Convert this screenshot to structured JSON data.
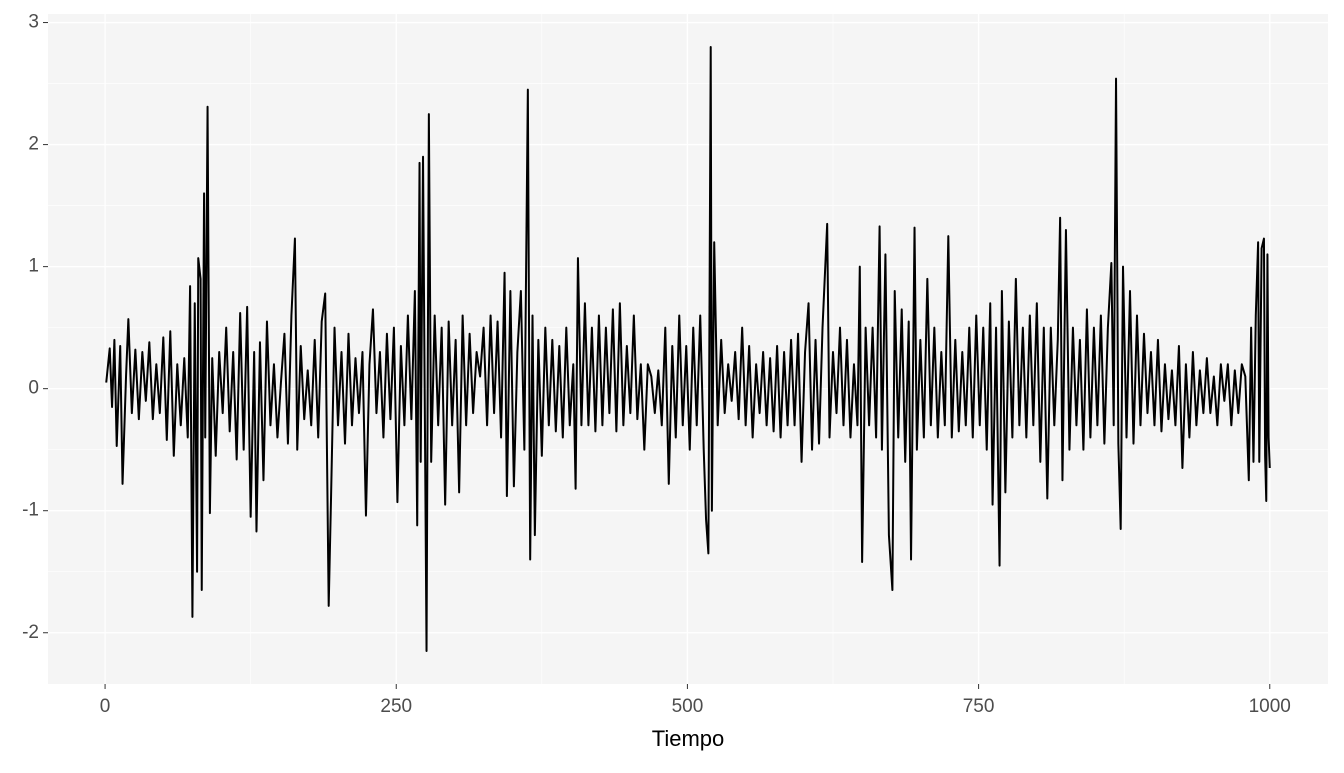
{
  "chart_data": {
    "type": "line",
    "x_label": "Tiempo",
    "color": "#000000",
    "xlim": [
      -49,
      1050
    ],
    "ylim": [
      -2.42,
      3.07
    ],
    "xticks": [
      0,
      250,
      500,
      750,
      1000
    ],
    "yticks": [
      -2,
      -1,
      0,
      1,
      2,
      3
    ],
    "grid": true,
    "minor_grid": true,
    "x": [
      1,
      4,
      6,
      8,
      10,
      13,
      15,
      18,
      20,
      23,
      26,
      29,
      32,
      35,
      38,
      41,
      44,
      47,
      50,
      53,
      56,
      59,
      62,
      65,
      68,
      71,
      73,
      75,
      77,
      79,
      80,
      82,
      83,
      85,
      86,
      88,
      90,
      92,
      95,
      98,
      101,
      104,
      107,
      110,
      113,
      116,
      119,
      122,
      125,
      128,
      130,
      133,
      136,
      139,
      142,
      145,
      148,
      151,
      154,
      157,
      160,
      163,
      165,
      168,
      171,
      174,
      177,
      180,
      183,
      186,
      189,
      192,
      194,
      197,
      200,
      203,
      206,
      209,
      212,
      215,
      218,
      221,
      224,
      227,
      230,
      233,
      236,
      239,
      242,
      245,
      248,
      251,
      254,
      257,
      260,
      263,
      266,
      268,
      270,
      271,
      273,
      275,
      276,
      278,
      280,
      283,
      286,
      289,
      292,
      295,
      298,
      301,
      304,
      307,
      310,
      313,
      316,
      319,
      322,
      325,
      328,
      331,
      334,
      337,
      340,
      343,
      345,
      348,
      351,
      354,
      357,
      360,
      363,
      365,
      367,
      369,
      372,
      375,
      378,
      381,
      384,
      387,
      390,
      393,
      396,
      399,
      402,
      404,
      406,
      409,
      412,
      415,
      418,
      421,
      424,
      427,
      430,
      433,
      436,
      439,
      442,
      445,
      448,
      451,
      454,
      457,
      460,
      463,
      466,
      469,
      472,
      475,
      478,
      481,
      484,
      487,
      490,
      493,
      496,
      499,
      502,
      505,
      508,
      511,
      514,
      516,
      518,
      520,
      521,
      523,
      526,
      529,
      532,
      535,
      538,
      541,
      544,
      547,
      550,
      553,
      556,
      559,
      562,
      565,
      568,
      571,
      574,
      577,
      580,
      583,
      586,
      589,
      592,
      595,
      598,
      601,
      604,
      607,
      610,
      613,
      616,
      620,
      622,
      625,
      628,
      631,
      634,
      637,
      640,
      643,
      646,
      648,
      650,
      653,
      656,
      659,
      662,
      665,
      667,
      670,
      673,
      676,
      678,
      681,
      684,
      687,
      690,
      692,
      695,
      697,
      700,
      703,
      706,
      709,
      712,
      715,
      718,
      721,
      724,
      727,
      730,
      733,
      736,
      739,
      742,
      745,
      748,
      751,
      754,
      757,
      760,
      762,
      765,
      768,
      770,
      773,
      776,
      779,
      782,
      785,
      788,
      791,
      794,
      797,
      800,
      803,
      806,
      809,
      812,
      815,
      818,
      820,
      822,
      825,
      828,
      831,
      834,
      837,
      840,
      843,
      846,
      849,
      852,
      855,
      858,
      861,
      864,
      866,
      868,
      870,
      872,
      874,
      877,
      880,
      883,
      886,
      889,
      892,
      895,
      898,
      901,
      904,
      907,
      910,
      913,
      916,
      919,
      922,
      925,
      928,
      931,
      934,
      937,
      940,
      943,
      946,
      949,
      952,
      955,
      958,
      961,
      964,
      967,
      970,
      973,
      976,
      979,
      982,
      984,
      986,
      988,
      990,
      991,
      993,
      995,
      996,
      997,
      998,
      999,
      1000
    ],
    "values": [
      0.05,
      0.33,
      -0.15,
      0.4,
      -0.47,
      0.35,
      -0.78,
      0.1,
      0.57,
      -0.2,
      0.32,
      -0.25,
      0.3,
      -0.1,
      0.38,
      -0.25,
      0.2,
      -0.2,
      0.42,
      -0.42,
      0.47,
      -0.55,
      0.2,
      -0.3,
      0.25,
      -0.4,
      0.84,
      -1.87,
      0.7,
      -1.5,
      1.07,
      0.9,
      -1.65,
      1.6,
      -0.4,
      2.31,
      -1.02,
      0.25,
      -0.55,
      0.3,
      -0.2,
      0.5,
      -0.35,
      0.3,
      -0.58,
      0.62,
      -0.5,
      0.67,
      -1.05,
      0.3,
      -1.17,
      0.38,
      -0.75,
      0.55,
      -0.3,
      0.2,
      -0.4,
      0.05,
      0.45,
      -0.45,
      0.6,
      1.23,
      -0.5,
      0.35,
      -0.25,
      0.15,
      -0.3,
      0.4,
      -0.4,
      0.55,
      0.78,
      -1.78,
      -0.9,
      0.5,
      -0.3,
      0.3,
      -0.45,
      0.45,
      -0.3,
      0.25,
      -0.2,
      0.3,
      -1.04,
      0.2,
      0.65,
      -0.2,
      0.3,
      -0.4,
      0.45,
      -0.25,
      0.5,
      -0.93,
      0.35,
      -0.3,
      0.6,
      -0.25,
      0.8,
      -1.12,
      1.85,
      -0.6,
      1.9,
      -0.8,
      -2.15,
      2.25,
      -0.6,
      0.6,
      -0.3,
      0.5,
      -0.95,
      0.55,
      -0.3,
      0.4,
      -0.85,
      0.6,
      -0.3,
      0.45,
      -0.2,
      0.3,
      0.1,
      0.5,
      -0.3,
      0.6,
      -0.2,
      0.55,
      -0.4,
      0.95,
      -0.88,
      0.8,
      -0.8,
      0.3,
      0.8,
      -0.5,
      2.45,
      -1.4,
      0.6,
      -1.2,
      0.4,
      -0.55,
      0.5,
      -0.3,
      0.4,
      -0.35,
      0.35,
      -0.4,
      0.5,
      -0.3,
      0.2,
      -0.82,
      1.07,
      -0.3,
      0.7,
      -0.3,
      0.5,
      -0.35,
      0.6,
      -0.3,
      0.5,
      -0.2,
      0.65,
      -0.35,
      0.7,
      -0.3,
      0.35,
      -0.2,
      0.6,
      -0.25,
      0.2,
      -0.5,
      0.2,
      0.1,
      -0.2,
      0.15,
      -0.3,
      0.5,
      -0.78,
      0.35,
      -0.4,
      0.6,
      -0.3,
      0.35,
      -0.5,
      0.5,
      -0.3,
      0.6,
      -0.5,
      -1.07,
      -1.35,
      2.8,
      -1.0,
      1.2,
      -0.3,
      0.4,
      -0.2,
      0.2,
      -0.1,
      0.3,
      -0.25,
      0.5,
      -0.3,
      0.35,
      -0.4,
      0.2,
      -0.2,
      0.3,
      -0.3,
      0.25,
      -0.35,
      0.35,
      -0.4,
      0.3,
      -0.3,
      0.4,
      -0.3,
      0.45,
      -0.6,
      0.3,
      0.7,
      -0.5,
      0.4,
      -0.45,
      0.5,
      1.35,
      -0.4,
      0.3,
      -0.2,
      0.5,
      -0.3,
      0.4,
      -0.4,
      0.2,
      -0.3,
      1.0,
      -1.42,
      0.5,
      -0.3,
      0.5,
      -0.4,
      1.33,
      -0.5,
      1.1,
      -1.2,
      -1.65,
      0.8,
      -0.4,
      0.65,
      -0.6,
      0.55,
      -1.4,
      1.32,
      -0.5,
      0.4,
      -0.4,
      0.9,
      -0.3,
      0.5,
      -0.4,
      0.3,
      -0.3,
      1.25,
      -0.4,
      0.4,
      -0.35,
      0.3,
      -0.3,
      0.5,
      -0.4,
      0.6,
      -0.3,
      0.5,
      -0.5,
      0.7,
      -0.95,
      0.5,
      -1.45,
      0.8,
      -0.85,
      0.55,
      -0.4,
      0.9,
      -0.3,
      0.5,
      -0.4,
      0.6,
      -0.3,
      0.7,
      -0.6,
      0.5,
      -0.9,
      0.5,
      -0.3,
      0.4,
      1.4,
      -0.75,
      1.3,
      -0.5,
      0.5,
      -0.3,
      0.4,
      -0.5,
      0.65,
      -0.4,
      0.5,
      -0.3,
      0.6,
      -0.45,
      0.5,
      1.03,
      -0.3,
      2.54,
      -0.45,
      -1.15,
      1.0,
      -0.4,
      0.8,
      -0.45,
      0.6,
      -0.3,
      0.45,
      -0.2,
      0.3,
      -0.3,
      0.4,
      -0.35,
      0.2,
      -0.25,
      0.15,
      -0.3,
      0.35,
      -0.65,
      0.2,
      -0.4,
      0.3,
      -0.3,
      0.15,
      -0.2,
      0.25,
      -0.2,
      0.1,
      -0.3,
      0.2,
      -0.1,
      0.2,
      -0.3,
      0.15,
      -0.2,
      0.2,
      0.1,
      -0.75,
      0.5,
      -0.6,
      0.6,
      1.2,
      -0.6,
      1.15,
      1.23,
      -0.55,
      -0.92,
      1.1,
      -0.4,
      -0.65
    ]
  }
}
